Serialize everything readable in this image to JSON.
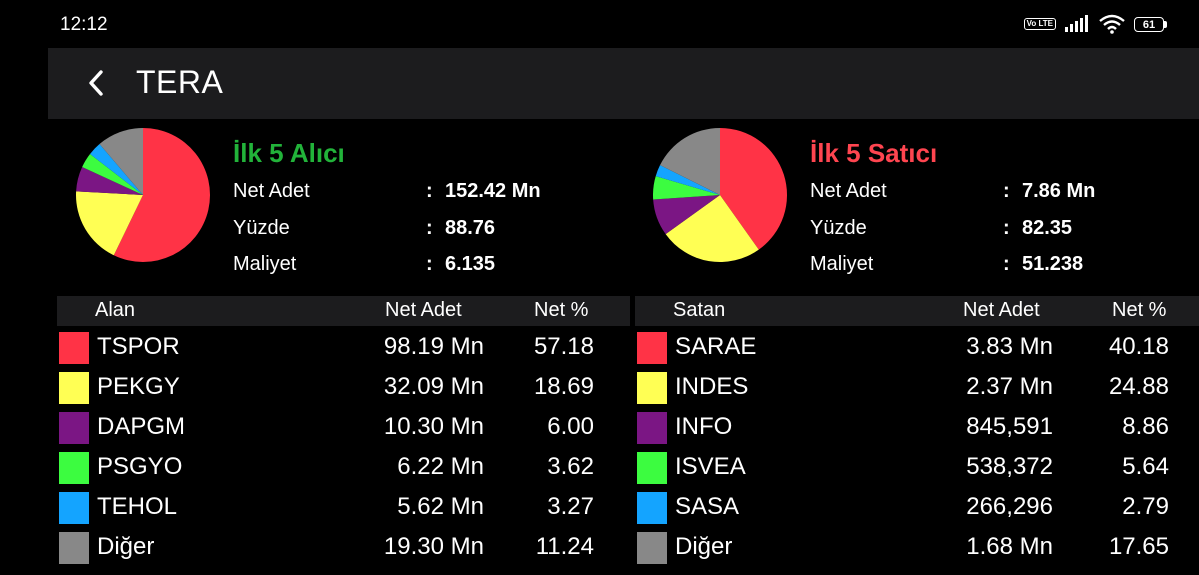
{
  "status": {
    "time": "12:12",
    "volte": "Vo LTE",
    "battery": "61"
  },
  "header": {
    "title": "TERA"
  },
  "buyers": {
    "title": "İlk 5 Alıcı",
    "title_color": "#22b33a",
    "summary": [
      {
        "label": "Net Adet",
        "value": "152.42 Mn"
      },
      {
        "label": "Yüzde",
        "value": "88.76"
      },
      {
        "label": "Maliyet",
        "value": "6.135"
      }
    ],
    "columns": {
      "name": "Alan",
      "net_adet": "Net Adet",
      "net_pct": "Net %"
    },
    "rows": [
      {
        "code": "TSPOR",
        "net_adet": "98.19 Mn",
        "net_pct": "57.18",
        "pct": 57.18,
        "color": "#ff3346"
      },
      {
        "code": "PEKGY",
        "net_adet": "32.09 Mn",
        "net_pct": "18.69",
        "pct": 18.69,
        "color": "#ffff54"
      },
      {
        "code": "DAPGM",
        "net_adet": "10.30 Mn",
        "net_pct": "6.00",
        "pct": 6.0,
        "color": "#7b1684"
      },
      {
        "code": "PSGYO",
        "net_adet": "6.22 Mn",
        "net_pct": "3.62",
        "pct": 3.62,
        "color": "#3cfc40"
      },
      {
        "code": "TEHOL",
        "net_adet": "5.62 Mn",
        "net_pct": "3.27",
        "pct": 3.27,
        "color": "#14a4ff"
      },
      {
        "code": "Diğer",
        "net_adet": "19.30 Mn",
        "net_pct": "11.24",
        "pct": 11.24,
        "color": "#888888"
      }
    ]
  },
  "sellers": {
    "title": "İlk 5 Satıcı",
    "title_color": "#ff4550",
    "summary": [
      {
        "label": "Net Adet",
        "value": "7.86 Mn"
      },
      {
        "label": "Yüzde",
        "value": "82.35"
      },
      {
        "label": "Maliyet",
        "value": "51.238"
      }
    ],
    "columns": {
      "name": "Satan",
      "net_adet": "Net Adet",
      "net_pct": "Net %"
    },
    "rows": [
      {
        "code": "SARAE",
        "net_adet": "3.83 Mn",
        "net_pct": "40.18",
        "pct": 40.18,
        "color": "#ff3346"
      },
      {
        "code": "INDES",
        "net_adet": "2.37 Mn",
        "net_pct": "24.88",
        "pct": 24.88,
        "color": "#ffff54"
      },
      {
        "code": "INFO",
        "net_adet": "845,591",
        "net_pct": "8.86",
        "pct": 8.86,
        "color": "#7b1684"
      },
      {
        "code": "ISVEA",
        "net_adet": "538,372",
        "net_pct": "5.64",
        "pct": 5.64,
        "color": "#3cfc40"
      },
      {
        "code": "SASA",
        "net_adet": "266,296",
        "net_pct": "2.79",
        "pct": 2.79,
        "color": "#14a4ff"
      },
      {
        "code": "Diğer",
        "net_adet": "1.68 Mn",
        "net_pct": "17.65",
        "pct": 17.65,
        "color": "#888888"
      }
    ]
  }
}
